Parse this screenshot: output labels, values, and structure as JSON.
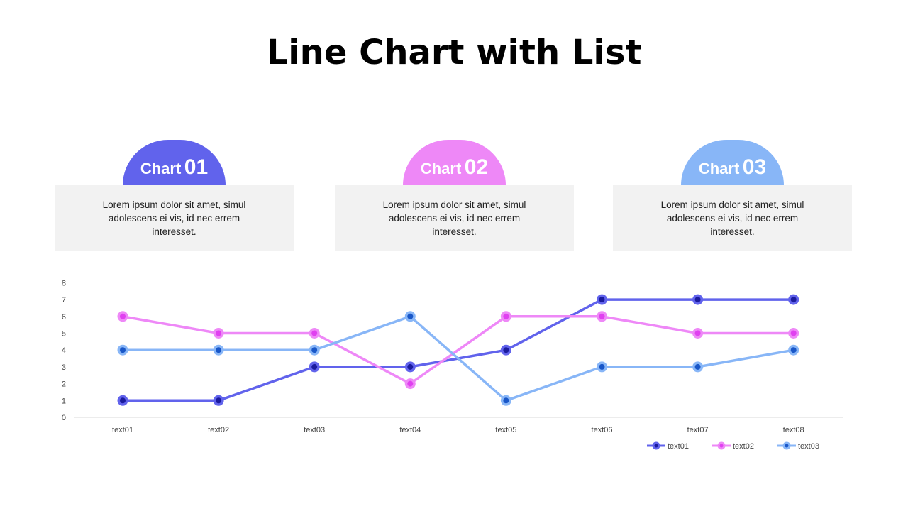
{
  "title": "Line Chart with List",
  "cards": [
    {
      "label": "Chart",
      "number": "01",
      "color": "#6163ec",
      "text": "Lorem ipsum dolor sit amet, simul adolescens ei vis, id nec errem interesset."
    },
    {
      "label": "Chart",
      "number": "02",
      "color": "#ee88f7",
      "text": "Lorem ipsum dolor sit amet, simul adolescens ei vis, id nec errem interesset."
    },
    {
      "label": "Chart",
      "number": "03",
      "color": "#88b6f7",
      "text": "Lorem ipsum dolor sit amet, simul adolescens ei vis, id nec errem interesset."
    }
  ],
  "chart_data": {
    "type": "line",
    "categories": [
      "text01",
      "text02",
      "text03",
      "text04",
      "text05",
      "text06",
      "text07",
      "text08"
    ],
    "ylim": [
      0,
      8
    ],
    "yticks": [
      0,
      1,
      2,
      3,
      4,
      5,
      6,
      7,
      8
    ],
    "legend_position": "bottom-right",
    "series": [
      {
        "name": "text01",
        "color": "#6163ec",
        "marker_color": "#1b1b9e",
        "values": [
          1,
          1,
          3,
          3,
          4,
          7,
          7,
          7
        ]
      },
      {
        "name": "text02",
        "color": "#ee88f7",
        "marker_color": "#e040f0",
        "values": [
          6,
          5,
          5,
          2,
          6,
          6,
          5,
          5
        ]
      },
      {
        "name": "text03",
        "color": "#88b6f7",
        "marker_color": "#1957c8",
        "values": [
          4,
          4,
          4,
          6,
          1,
          3,
          3,
          4
        ]
      }
    ]
  }
}
